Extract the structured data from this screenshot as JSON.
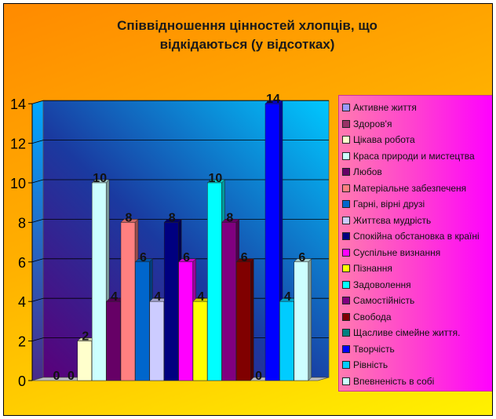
{
  "chart_data": {
    "type": "bar",
    "title": "Співвідношення цінностей хлопців, що\nвідкідаються (у відсотках)",
    "ylim": [
      0,
      14
    ],
    "yticks": [
      0,
      2,
      4,
      6,
      8,
      10,
      12,
      14
    ],
    "legend_position": "right",
    "grid": true,
    "series": [
      {
        "name": "Активне життя",
        "value": 0,
        "color": "#9999ff"
      },
      {
        "name": "Здоров'я",
        "value": 0,
        "color": "#993366"
      },
      {
        "name": "Цікава робота",
        "value": 2,
        "color": "#ffffcc"
      },
      {
        "name": "Краса природи и мистецтва",
        "value": 10,
        "color": "#ccffff"
      },
      {
        "name": "Любов",
        "value": 4,
        "color": "#660066"
      },
      {
        "name": "Матеріальне забезпеченя",
        "value": 8,
        "color": "#ff8080"
      },
      {
        "name": "Гарні, вірні друзі",
        "value": 6,
        "color": "#0066cc"
      },
      {
        "name": "Життєва мудрість",
        "value": 4,
        "color": "#ccccff"
      },
      {
        "name": "Спокійна обстановка в країні",
        "value": 8,
        "color": "#000080"
      },
      {
        "name": "Суспільне визнання",
        "value": 6,
        "color": "#ff00ff"
      },
      {
        "name": "Пізнання",
        "value": 4,
        "color": "#ffff00"
      },
      {
        "name": "Задоволення",
        "value": 10,
        "color": "#00ffff"
      },
      {
        "name": "Самостійність",
        "value": 8,
        "color": "#800080"
      },
      {
        "name": "Свобода",
        "value": 6,
        "color": "#800000"
      },
      {
        "name": "Щасливе сімейне життя.",
        "value": 0,
        "color": "#008080"
      },
      {
        "name": "Творчість",
        "value": 14,
        "color": "#0000ff"
      },
      {
        "name": "Рівність",
        "value": 4,
        "color": "#00ccff"
      },
      {
        "name": "Впевненість в собі",
        "value": 6,
        "color": "#ccffff"
      }
    ]
  }
}
